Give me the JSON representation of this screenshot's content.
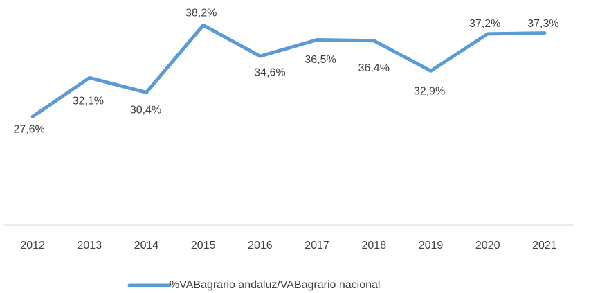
{
  "chart_data": {
    "type": "line",
    "categories": [
      "2012",
      "2013",
      "2014",
      "2015",
      "2016",
      "2017",
      "2018",
      "2019",
      "2020",
      "2021"
    ],
    "series": [
      {
        "name": "%VABagrario andaluz/VABagrario nacional",
        "color": "#5b9bd5",
        "values": [
          27.6,
          32.1,
          30.4,
          38.2,
          34.6,
          36.5,
          36.4,
          32.9,
          37.2,
          37.3
        ],
        "value_labels": [
          "27,6%",
          "32,1%",
          "30,4%",
          "38,2%",
          "34,6%",
          "36,5%",
          "36,4%",
          "32,9%",
          "37,2%",
          "37,3%"
        ]
      }
    ],
    "ylim": [
      15,
      40
    ],
    "legend": "bottom"
  }
}
